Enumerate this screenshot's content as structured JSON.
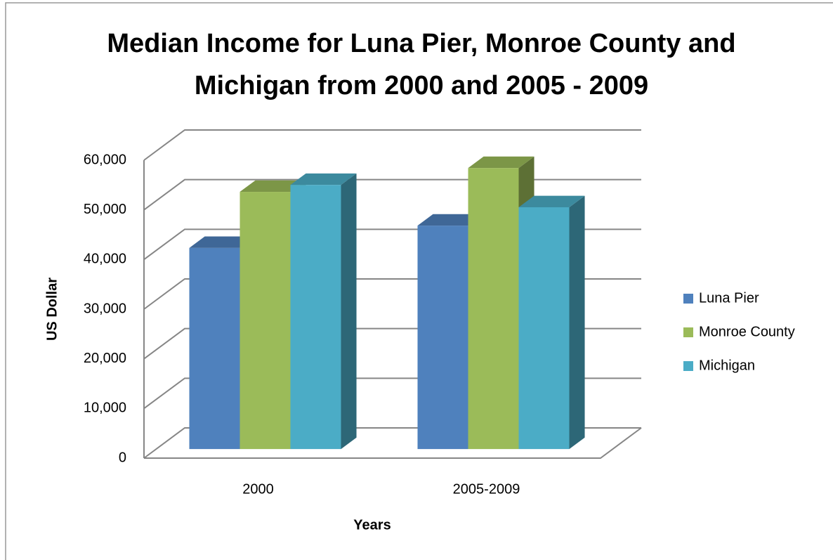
{
  "chart_data": {
    "type": "bar3d",
    "title": "Median Income for Luna Pier, Monroe County and Michigan from 2000 and 2005 - 2009",
    "x_label": "Years",
    "y_label": "US Dollar",
    "categories": [
      "2000",
      "2005-2009"
    ],
    "series": [
      {
        "name": "Luna Pier",
        "color": "#4f81bd",
        "values": [
          40500,
          45000
        ]
      },
      {
        "name": "Monroe County",
        "color": "#9bbb59",
        "values": [
          51800,
          56600
        ]
      },
      {
        "name": "Michigan",
        "color": "#4bacc6",
        "values": [
          53200,
          48700
        ]
      }
    ],
    "ylim": [
      0,
      60000
    ],
    "yticks": [
      0,
      {
        "value": 10000,
        "label": "10,000"
      },
      {
        "value": 20000,
        "label": "20,000"
      },
      {
        "value": 30000,
        "label": "30,000"
      },
      {
        "value": 40000,
        "label": "40,000"
      },
      {
        "value": 50000,
        "label": "50,000"
      },
      {
        "value": 60000,
        "label": "60,000"
      }
    ],
    "grid": true,
    "legend": "right"
  }
}
